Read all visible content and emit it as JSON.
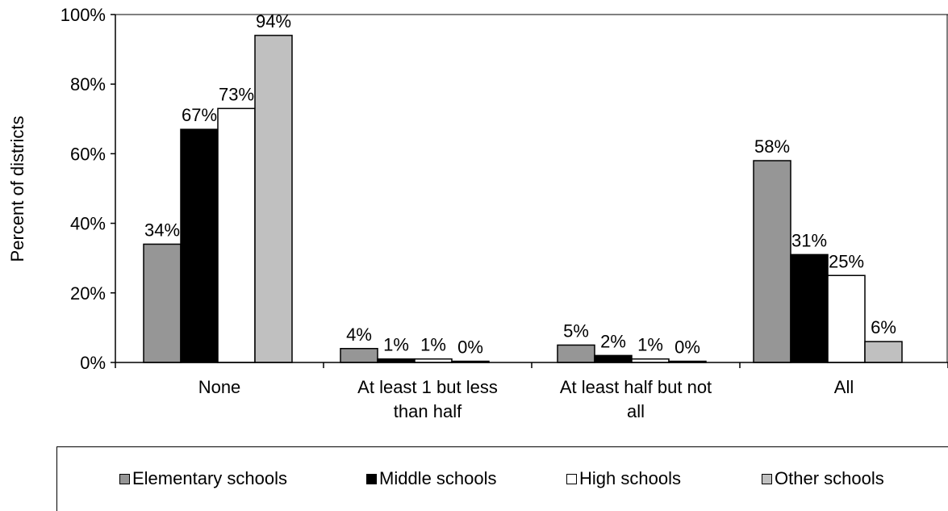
{
  "chart_data": {
    "type": "bar",
    "categories": [
      "None",
      "At least 1 but less than half",
      "At least half but not all",
      "All"
    ],
    "category_label_lines": [
      [
        "None"
      ],
      [
        "At least 1 but less",
        "than half"
      ],
      [
        "At least half but not",
        "all"
      ],
      [
        "All"
      ]
    ],
    "series": [
      {
        "name": "Elementary schools",
        "values": [
          34,
          4,
          5,
          58
        ],
        "labels": [
          "34%",
          "4%",
          "5%",
          "58%"
        ],
        "color": "#969696"
      },
      {
        "name": "Middle schools",
        "values": [
          67,
          1,
          2,
          31
        ],
        "labels": [
          "67%",
          "1%",
          "2%",
          "31%"
        ],
        "color": "#000000"
      },
      {
        "name": "High schools",
        "values": [
          73,
          1,
          1,
          25
        ],
        "labels": [
          "73%",
          "1%",
          "1%",
          "25%"
        ],
        "color": "#ffffff"
      },
      {
        "name": "Other schools",
        "values": [
          94,
          0,
          0,
          6
        ],
        "labels": [
          "94%",
          "0%",
          "0%",
          "6%"
        ],
        "color": "#c0c0c0"
      }
    ],
    "ylabel": "Percent of districts",
    "xlabel": "",
    "ylim": [
      0,
      100
    ],
    "yticks": [
      "0%",
      "20%",
      "40%",
      "60%",
      "80%",
      "100%"
    ],
    "grid": false,
    "legend_position": "bottom"
  }
}
